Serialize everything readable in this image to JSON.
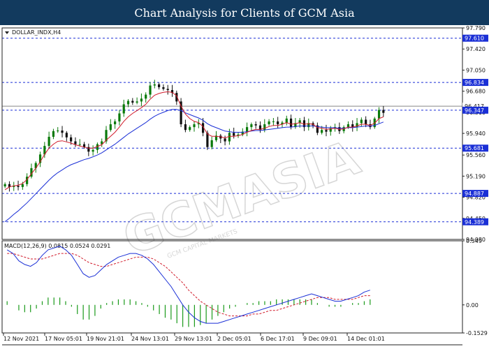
{
  "banner": {
    "title": "Chart Analysis for Clients of GCM Asia"
  },
  "watermark": {
    "main": "GCMASIA",
    "sub": "GCM CAPITAL MARKETS"
  },
  "colors": {
    "bull": "#0a7a0a",
    "bear": "#111111",
    "ma_fast": "#d11a2a",
    "ma_slow": "#1a2fd6",
    "level_line": "#1a2fd6",
    "level_box": "#1a2fd6",
    "current_box": "#1a2fd6",
    "macd_hist": "#1a9a1a",
    "macd_line": "#1a2fd6",
    "signal_line": "#d11a2a",
    "banner_bg": "#123a5e"
  },
  "chart_data": [
    {
      "type": "candlestick",
      "symbol_label": "DOLLAR_INDX,H4",
      "ylim": [
        94.08,
        97.79
      ],
      "y_ticks": [
        "97.790",
        "97.420",
        "97.050",
        "96.680",
        "96.310",
        "95.940",
        "95.560",
        "95.190",
        "94.820",
        "94.450",
        "94.080"
      ],
      "x_labels": [
        "12 Nov 2021",
        "17 Nov 05:01",
        "19 Nov 21:01",
        "24 Nov 13:01",
        "29 Nov 13:01",
        "2 Dec 05:01",
        "6 Dec 17:01",
        "9 Dec 09:01",
        "14 Dec 01:01"
      ],
      "levels": [
        {
          "label": "97.610",
          "value": 97.61
        },
        {
          "label": "96.834",
          "value": 96.834
        },
        {
          "label": "95.681",
          "value": 95.681
        },
        {
          "label": "94.887",
          "value": 94.887
        },
        {
          "label": "94.389",
          "value": 94.389
        }
      ],
      "current_price": {
        "label": "96.347",
        "value": 96.347
      },
      "gray_price": {
        "label": "96.417",
        "value": 96.417
      },
      "close_series": [
        95.05,
        95.0,
        95.02,
        95.0,
        95.05,
        95.18,
        95.33,
        95.42,
        95.57,
        95.72,
        95.88,
        95.98,
        95.99,
        95.95,
        95.87,
        95.8,
        95.75,
        95.75,
        95.7,
        95.62,
        95.65,
        95.75,
        95.8,
        96.0,
        96.1,
        96.15,
        96.29,
        96.45,
        96.51,
        96.48,
        96.5,
        96.55,
        96.62,
        96.78,
        96.8,
        96.75,
        96.72,
        96.7,
        96.65,
        96.5,
        96.1,
        96.0,
        96.05,
        96.1,
        96.12,
        95.95,
        95.7,
        95.82,
        95.9,
        95.85,
        95.8,
        95.95,
        95.9,
        95.92,
        95.97,
        96.05,
        96.1,
        96.08,
        96.0,
        96.1,
        96.15,
        96.15,
        96.1,
        96.13,
        96.2,
        96.05,
        96.12,
        96.17,
        96.05,
        96.12,
        96.08,
        95.95,
        96.0,
        95.97,
        96.03,
        96.05,
        95.98,
        96.05,
        96.1,
        96.05,
        96.12,
        96.18,
        96.1,
        96.05,
        96.2,
        96.35,
        96.3
      ],
      "ma_fast": [
        94.95,
        95.0,
        95.02,
        95.03,
        95.06,
        95.13,
        95.23,
        95.33,
        95.44,
        95.57,
        95.68,
        95.75,
        95.8,
        95.81,
        95.79,
        95.77,
        95.74,
        95.72,
        95.7,
        95.68,
        95.68,
        95.71,
        95.74,
        95.82,
        95.89,
        95.96,
        96.05,
        96.15,
        96.23,
        96.29,
        96.34,
        96.39,
        96.45,
        96.54,
        96.61,
        96.64,
        96.66,
        96.67,
        96.66,
        96.6,
        96.42,
        96.28,
        96.2,
        96.15,
        96.13,
        96.06,
        95.93,
        95.89,
        95.89,
        95.88,
        95.86,
        95.89,
        95.89,
        95.9,
        95.92,
        95.96,
        95.99,
        96.01,
        96.01,
        96.03,
        96.06,
        96.08,
        96.08,
        96.1,
        96.13,
        96.1,
        96.11,
        96.13,
        96.1,
        96.11,
        96.1,
        96.04,
        96.03,
        96.01,
        96.02,
        96.03,
        96.01,
        96.02,
        96.05,
        96.05,
        96.07,
        96.1,
        96.1,
        96.08,
        96.12,
        96.2,
        96.23
      ],
      "ma_slow": [
        94.39,
        94.45,
        94.52,
        94.58,
        94.65,
        94.72,
        94.8,
        94.88,
        94.96,
        95.04,
        95.12,
        95.19,
        95.25,
        95.3,
        95.35,
        95.39,
        95.42,
        95.45,
        95.48,
        95.5,
        95.53,
        95.56,
        95.6,
        95.65,
        95.7,
        95.75,
        95.81,
        95.87,
        95.93,
        95.98,
        96.03,
        96.08,
        96.13,
        96.19,
        96.24,
        96.28,
        96.31,
        96.34,
        96.36,
        96.36,
        96.34,
        96.3,
        96.27,
        96.24,
        96.21,
        96.17,
        96.11,
        96.07,
        96.04,
        96.01,
        95.98,
        95.97,
        95.96,
        95.96,
        95.96,
        95.97,
        95.98,
        95.99,
        95.99,
        96.0,
        96.01,
        96.02,
        96.03,
        96.04,
        96.05,
        96.05,
        96.06,
        96.07,
        96.07,
        96.07,
        96.07,
        96.06,
        96.05,
        96.04,
        96.04,
        96.04,
        96.03,
        96.03,
        96.04,
        96.04,
        96.05,
        96.06,
        96.07,
        96.07,
        96.08,
        96.11,
        96.14
      ]
    },
    {
      "type": "macd",
      "label": "MACD(12,26,9) 0.0815 0.0524 0.0291",
      "ylim": [
        -0.1529,
        0.349
      ],
      "y_ticks": [
        "0.349",
        "0.00",
        "-0.1529"
      ],
      "macd": [
        0.3,
        0.28,
        0.24,
        0.22,
        0.21,
        0.23,
        0.27,
        0.3,
        0.31,
        0.32,
        0.3,
        0.27,
        0.22,
        0.17,
        0.15,
        0.16,
        0.19,
        0.22,
        0.24,
        0.26,
        0.27,
        0.28,
        0.28,
        0.27,
        0.25,
        0.22,
        0.18,
        0.14,
        0.1,
        0.05,
        0.0,
        -0.04,
        -0.07,
        -0.09,
        -0.1,
        -0.1,
        -0.1,
        -0.09,
        -0.08,
        -0.07,
        -0.06,
        -0.05,
        -0.04,
        -0.03,
        -0.02,
        -0.01,
        0.0,
        0.01,
        0.02,
        0.03,
        0.04,
        0.05,
        0.06,
        0.05,
        0.04,
        0.03,
        0.02,
        0.02,
        0.03,
        0.04,
        0.05,
        0.07,
        0.08
      ],
      "signal": [
        0.28,
        0.28,
        0.27,
        0.26,
        0.25,
        0.25,
        0.25,
        0.26,
        0.27,
        0.28,
        0.28,
        0.28,
        0.27,
        0.25,
        0.23,
        0.22,
        0.21,
        0.21,
        0.22,
        0.23,
        0.24,
        0.25,
        0.26,
        0.26,
        0.26,
        0.25,
        0.23,
        0.21,
        0.18,
        0.15,
        0.12,
        0.08,
        0.05,
        0.02,
        0.0,
        -0.02,
        -0.04,
        -0.05,
        -0.06,
        -0.06,
        -0.06,
        -0.06,
        -0.05,
        -0.05,
        -0.04,
        -0.03,
        -0.03,
        -0.02,
        -0.01,
        0.0,
        0.01,
        0.02,
        0.03,
        0.04,
        0.04,
        0.04,
        0.03,
        0.03,
        0.03,
        0.03,
        0.04,
        0.05,
        0.05
      ],
      "histogram": [
        0.02,
        0.0,
        -0.03,
        -0.04,
        -0.04,
        -0.02,
        0.02,
        0.04,
        0.04,
        0.04,
        0.02,
        -0.01,
        -0.05,
        -0.08,
        -0.08,
        -0.06,
        -0.02,
        0.01,
        0.02,
        0.03,
        0.03,
        0.03,
        0.02,
        0.01,
        -0.01,
        -0.03,
        -0.05,
        -0.07,
        -0.08,
        -0.1,
        -0.12,
        -0.12,
        -0.12,
        -0.11,
        -0.1,
        -0.08,
        -0.06,
        -0.04,
        -0.02,
        -0.01,
        0.0,
        0.01,
        0.01,
        0.02,
        0.02,
        0.02,
        0.03,
        0.03,
        0.03,
        0.03,
        0.03,
        0.03,
        0.03,
        0.01,
        0.0,
        -0.01,
        -0.01,
        -0.01,
        0.0,
        0.01,
        0.01,
        0.02,
        0.03
      ]
    }
  ]
}
